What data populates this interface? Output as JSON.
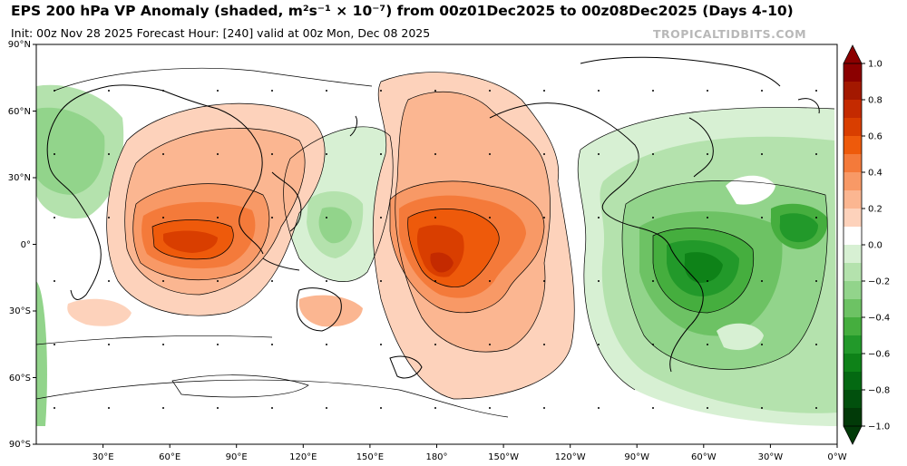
{
  "header": {
    "title": "EPS 200 hPa VP Anomaly (shaded, m²s⁻¹ × 10⁻⁷) from 00z01Dec2025 to 00z08Dec2025 (Days 4-10)",
    "subtitle": "Init: 00z Nov 28 2025   Forecast Hour: [240]   valid at 00z Mon, Dec 08 2025",
    "brand": "TROPICALTIDBITS.COM"
  },
  "axes": {
    "lat_labels": [
      "90°N",
      "60°N",
      "30°N",
      "0°",
      "30°S",
      "60°S",
      "90°S"
    ],
    "lon_labels": [
      "30°E",
      "60°E",
      "90°E",
      "120°E",
      "150°E",
      "180°",
      "150°W",
      "120°W",
      "90°W",
      "60°W",
      "30°W",
      "0°W"
    ]
  },
  "colorbar": {
    "ticks": [
      "1.0",
      "0.8",
      "0.6",
      "0.4",
      "0.2",
      "0.0",
      "−0.2",
      "−0.4",
      "−0.6",
      "−0.8",
      "−1.0"
    ],
    "levels": [
      1.0,
      0.9,
      0.8,
      0.7,
      0.6,
      0.5,
      0.4,
      0.3,
      0.2,
      0.1,
      -0.1,
      -0.2,
      -0.3,
      -0.4,
      -0.5,
      -0.6,
      -0.7,
      -0.8,
      -0.9,
      -1.0
    ],
    "colors": [
      "#8b0000",
      "#a31800",
      "#c42a00",
      "#d93e00",
      "#ee5a0b",
      "#f47a3a",
      "#f89966",
      "#fbb691",
      "#fdd2bb",
      "#ffffff",
      "#d7f0d3",
      "#b4e2ad",
      "#92d48b",
      "#6dc264",
      "#45ae3e",
      "#22992a",
      "#0e8218",
      "#046912",
      "#01500d",
      "#013a08"
    ]
  },
  "anomalies": {
    "positive": [
      "Indian Ocean / Maritime Continent",
      "Central Pacific near 180°"
    ],
    "negative": [
      "Atlantic / South America",
      "Western Pacific",
      "Eastern Atlantic / Africa"
    ]
  }
}
